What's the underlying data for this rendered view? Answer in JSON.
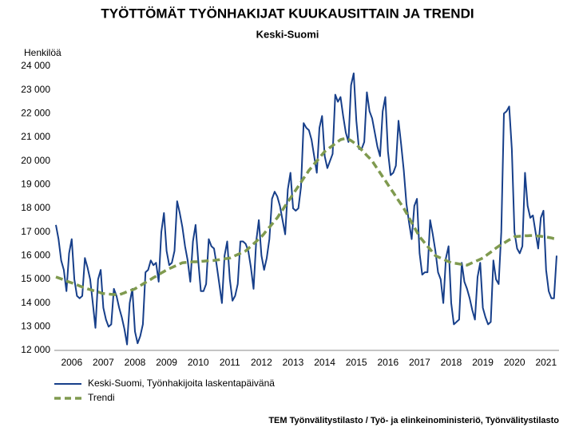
{
  "chart_data": {
    "type": "line",
    "title": "TYÖTTÖMÄT TYÖNHAKIJAT KUUKAUSITTAIN JA TRENDI",
    "subtitle": "Keski-Suomi",
    "y_label": "Henkilöä",
    "source": "TEM Työnvälitystilasto / Työ- ja elinkeinoministeriö, Työnvälitystilasto",
    "categories": [
      null,
      null,
      null,
      null,
      null,
      null,
      "2006",
      null,
      null,
      null,
      null,
      null,
      null,
      null,
      null,
      null,
      null,
      null,
      "2007",
      null,
      null,
      null,
      null,
      null,
      null,
      null,
      null,
      null,
      null,
      null,
      "2008",
      null,
      null,
      null,
      null,
      null,
      null,
      null,
      null,
      null,
      null,
      null,
      "2009",
      null,
      null,
      null,
      null,
      null,
      null,
      null,
      null,
      null,
      null,
      null,
      "2010",
      null,
      null,
      null,
      null,
      null,
      null,
      null,
      null,
      null,
      null,
      null,
      "2011",
      null,
      null,
      null,
      null,
      null,
      null,
      null,
      null,
      null,
      null,
      null,
      "2012",
      null,
      null,
      null,
      null,
      null,
      null,
      null,
      null,
      null,
      null,
      null,
      "2013",
      null,
      null,
      null,
      null,
      null,
      null,
      null,
      null,
      null,
      null,
      null,
      "2014",
      null,
      null,
      null,
      null,
      null,
      null,
      null,
      null,
      null,
      null,
      null,
      "2015",
      null,
      null,
      null,
      null,
      null,
      null,
      null,
      null,
      null,
      null,
      null,
      "2016",
      null,
      null,
      null,
      null,
      null,
      null,
      null,
      null,
      null,
      null,
      null,
      "2017",
      null,
      null,
      null,
      null,
      null,
      null,
      null,
      null,
      null,
      null,
      null,
      "2018",
      null,
      null,
      null,
      null,
      null,
      null,
      null,
      null,
      null,
      null,
      null,
      "2019",
      null,
      null,
      null,
      null,
      null,
      null,
      null,
      null,
      null,
      null,
      null,
      "2020",
      null,
      null,
      null,
      null,
      null,
      null,
      null,
      null,
      null,
      null,
      null,
      "2021",
      null,
      null,
      null,
      null
    ],
    "series": [
      {
        "name": "Keski-Suomi, Työnhakijoita laskentapäivänä",
        "color": "#173f8a",
        "style": "solid",
        "values": [
          17300,
          16700,
          15800,
          15400,
          14500,
          16100,
          16700,
          15000,
          14300,
          14200,
          14300,
          15900,
          15500,
          15000,
          14000,
          12950,
          15000,
          15400,
          13800,
          13300,
          13000,
          13100,
          14600,
          14300,
          13800,
          13400,
          12900,
          12250,
          14000,
          14600,
          12800,
          12300,
          12600,
          13100,
          15300,
          15400,
          15800,
          15600,
          15700,
          14900,
          17000,
          17800,
          16200,
          15600,
          15700,
          16200,
          18300,
          17800,
          17200,
          16400,
          15800,
          14900,
          16600,
          17300,
          15800,
          14500,
          14500,
          14800,
          16700,
          16400,
          16300,
          15600,
          14800,
          14000,
          16000,
          16600,
          15000,
          14100,
          14300,
          14800,
          16600,
          16600,
          16500,
          16200,
          15500,
          14600,
          16600,
          17500,
          16000,
          15400,
          15900,
          16700,
          18400,
          18700,
          18500,
          18100,
          17500,
          16900,
          18800,
          19500,
          18000,
          17900,
          18000,
          18900,
          21600,
          21400,
          21300,
          20900,
          20200,
          19500,
          21400,
          21900,
          20200,
          19700,
          20000,
          20300,
          22800,
          22500,
          22700,
          21900,
          21200,
          20800,
          23200,
          23700,
          21700,
          20500,
          20500,
          20800,
          22900,
          22100,
          21800,
          21200,
          20600,
          20200,
          22100,
          22700,
          20400,
          19400,
          19500,
          19800,
          21700,
          20700,
          19600,
          18200,
          17400,
          16700,
          18100,
          18400,
          16100,
          15200,
          15300,
          15300,
          17500,
          16900,
          16200,
          15300,
          15000,
          14000,
          15900,
          16400,
          14000,
          13100,
          13200,
          13300,
          15700,
          14900,
          14600,
          14200,
          13700,
          13300,
          15100,
          15700,
          13800,
          13400,
          13100,
          13200,
          15800,
          15000,
          14800,
          17000,
          22000,
          22100,
          22300,
          20500,
          17000,
          16300,
          16100,
          16400,
          19500,
          18100,
          17600,
          17700,
          17000,
          16300,
          17600,
          17900,
          15400,
          14500,
          14200,
          14200,
          16000
        ]
      },
      {
        "name": "Trendi",
        "color": "#7f9a4f",
        "style": "dashed",
        "values": [
          15100,
          15060,
          15020,
          14980,
          14930,
          14890,
          14850,
          14810,
          14770,
          14720,
          14680,
          14640,
          14600,
          14570,
          14530,
          14500,
          14470,
          14430,
          14400,
          14390,
          14380,
          14370,
          14360,
          14350,
          14350,
          14390,
          14430,
          14480,
          14520,
          14560,
          14600,
          14670,
          14730,
          14800,
          14870,
          14930,
          15000,
          15070,
          15130,
          15200,
          15270,
          15330,
          15400,
          15450,
          15500,
          15550,
          15600,
          15650,
          15700,
          15710,
          15720,
          15730,
          15740,
          15740,
          15750,
          15760,
          15770,
          15780,
          15790,
          15790,
          15800,
          15820,
          15830,
          15850,
          15870,
          15880,
          15900,
          15950,
          16000,
          16050,
          16100,
          16150,
          16200,
          16300,
          16400,
          16500,
          16600,
          16700,
          16800,
          16930,
          17070,
          17200,
          17330,
          17470,
          17600,
          17770,
          17930,
          18100,
          18270,
          18430,
          18600,
          18770,
          18930,
          19100,
          19270,
          19430,
          19600,
          19730,
          19870,
          20000,
          20130,
          20270,
          20400,
          20480,
          20570,
          20650,
          20730,
          20820,
          20900,
          20930,
          20950,
          20920,
          20860,
          20780,
          20700,
          20580,
          20470,
          20350,
          20230,
          20120,
          20000,
          19830,
          19670,
          19500,
          19330,
          19170,
          19000,
          18830,
          18670,
          18500,
          18330,
          18170,
          18000,
          17800,
          17600,
          17400,
          17200,
          17000,
          16800,
          16670,
          16530,
          16400,
          16270,
          16130,
          16000,
          15950,
          15900,
          15850,
          15800,
          15750,
          15700,
          15680,
          15670,
          15650,
          15630,
          15620,
          15600,
          15650,
          15700,
          15750,
          15800,
          15850,
          15900,
          15980,
          16070,
          16150,
          16230,
          16320,
          16400,
          16470,
          16530,
          16600,
          16670,
          16730,
          16800,
          16810,
          16820,
          16830,
          16840,
          16840,
          16850,
          16850,
          16840,
          16830,
          16820,
          16800,
          16790,
          16770,
          16750,
          16720,
          16700
        ]
      }
    ],
    "ylim": [
      12000,
      24000
    ],
    "yticks": [
      {
        "value": 12000,
        "label": "12 000"
      },
      {
        "value": 13000,
        "label": "13 000"
      },
      {
        "value": 14000,
        "label": "14 000"
      },
      {
        "value": 15000,
        "label": "15 000"
      },
      {
        "value": 16000,
        "label": "16 000"
      },
      {
        "value": 17000,
        "label": "17 000"
      },
      {
        "value": 18000,
        "label": "18 000"
      },
      {
        "value": 19000,
        "label": "19 000"
      },
      {
        "value": 20000,
        "label": "20 000"
      },
      {
        "value": 21000,
        "label": "21 000"
      },
      {
        "value": 22000,
        "label": "22 000"
      },
      {
        "value": 23000,
        "label": "23 000"
      },
      {
        "value": 24000,
        "label": "24 000"
      }
    ],
    "grid": false,
    "legend": "bottom-left"
  }
}
